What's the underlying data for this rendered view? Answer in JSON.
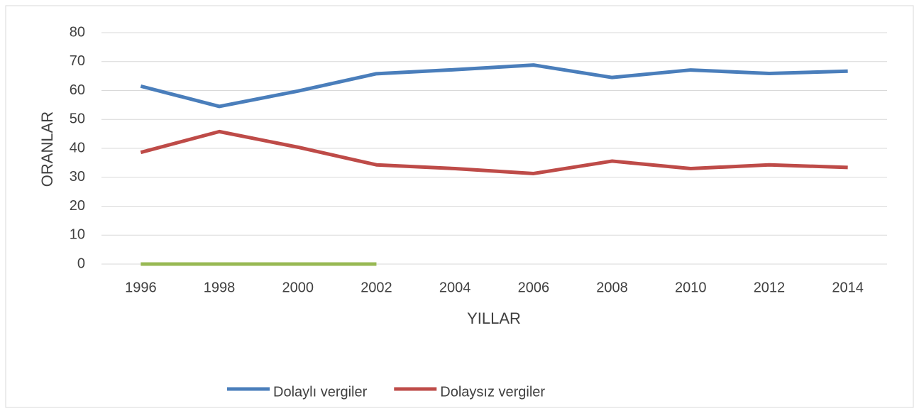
{
  "chart_data": {
    "type": "line",
    "x_label": "YILLAR",
    "y_label": "ORANLAR",
    "categories": [
      "1996",
      "1998",
      "2000",
      "2002",
      "2004",
      "2006",
      "2008",
      "2010",
      "2012",
      "2014"
    ],
    "series": [
      {
        "name": "Dolaylı vergiler",
        "color": "#4a7ebb",
        "values": [
          61.5,
          54.5,
          59.8,
          65.8,
          67.2,
          68.8,
          64.5,
          67.1,
          65.9,
          66.7
        ]
      },
      {
        "name": "Dolaysız vergiler",
        "color": "#be4b48",
        "values": [
          38.6,
          45.8,
          40.4,
          34.3,
          33.0,
          31.3,
          35.6,
          33.0,
          34.3,
          33.4
        ]
      },
      {
        "color": "#98b954",
        "values": [
          0,
          0,
          0,
          0,
          null,
          null,
          null,
          null,
          null,
          null
        ]
      }
    ],
    "ylim": [
      0,
      80
    ],
    "yticks": [
      0,
      10,
      20,
      30,
      40,
      50,
      60,
      70,
      80
    ],
    "grid": true,
    "legend": "bottom"
  }
}
